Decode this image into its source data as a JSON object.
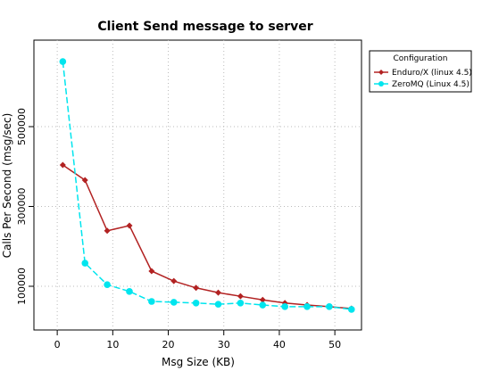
{
  "chart_data": {
    "type": "line",
    "title": "Client Send message to server",
    "x_label": "Msg Size (KB)",
    "y_label": "Calls Per Second (msg/sec)",
    "x": [
      1,
      5,
      9,
      13,
      17,
      21,
      25,
      29,
      33,
      37,
      41,
      45,
      49,
      53
    ],
    "series": [
      {
        "name": "Enduro/X (linux 4.5)",
        "color": "#b22222",
        "marker": "diamond",
        "values": [
          404000,
          366000,
          239000,
          252000,
          138000,
          113000,
          96000,
          84000,
          75000,
          66000,
          58000,
          53000,
          49000,
          44000
        ]
      },
      {
        "name": "ZeroMQ (Linux 4.5)",
        "color": "#00e5ee",
        "marker": "circle",
        "values": [
          663000,
          158000,
          104000,
          87000,
          62000,
          60000,
          58000,
          55000,
          58000,
          53000,
          49000,
          49000,
          49000,
          42000
        ]
      }
    ],
    "xlim": [
      -4.2,
      54.8
    ],
    "xticks": [
      0,
      10,
      20,
      30,
      40,
      50
    ],
    "ylim": [
      -9500,
      716760
    ],
    "yticks": [
      100000,
      300000,
      500000
    ],
    "grid": true,
    "legend_title": "Configuration",
    "legend_position": "top-right"
  }
}
